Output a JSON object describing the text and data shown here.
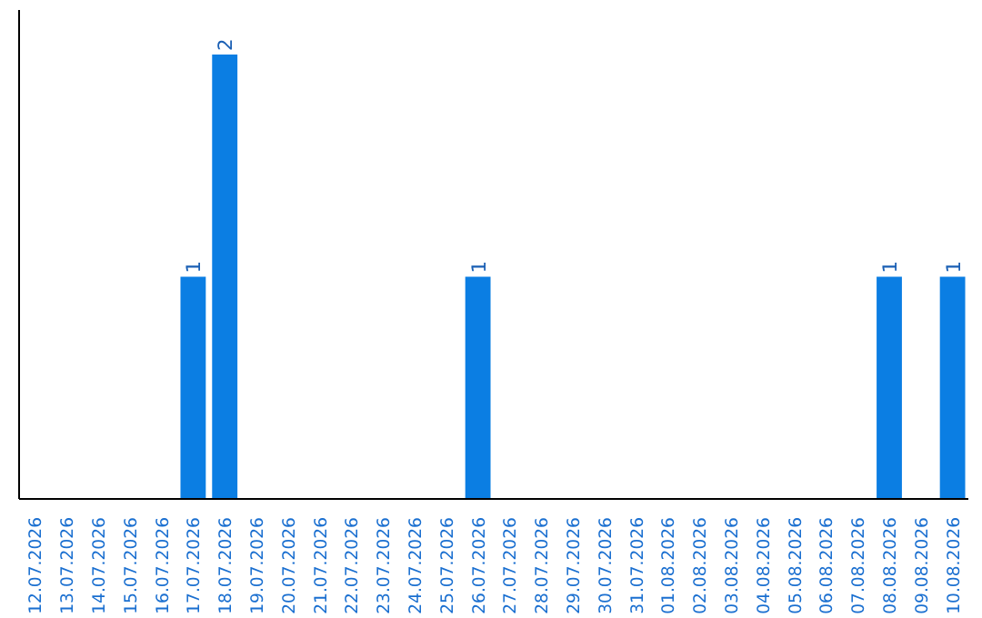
{
  "chart_data": {
    "type": "bar",
    "categories": [
      "12.07.2026",
      "13.07.2026",
      "14.07.2026",
      "15.07.2026",
      "16.07.2026",
      "17.07.2026",
      "18.07.2026",
      "19.07.2026",
      "20.07.2026",
      "21.07.2026",
      "22.07.2026",
      "23.07.2026",
      "24.07.2026",
      "25.07.2026",
      "26.07.2026",
      "27.07.2026",
      "28.07.2026",
      "29.07.2026",
      "30.07.2026",
      "31.07.2026",
      "01.08.2026",
      "02.08.2026",
      "03.08.2026",
      "04.08.2026",
      "05.08.2026",
      "06.08.2026",
      "07.08.2026",
      "08.08.2026",
      "09.08.2026",
      "10.08.2026"
    ],
    "values": [
      0,
      0,
      0,
      0,
      0,
      1,
      2,
      0,
      0,
      0,
      0,
      0,
      0,
      0,
      1,
      0,
      0,
      0,
      0,
      0,
      0,
      0,
      0,
      0,
      0,
      0,
      0,
      1,
      0,
      1
    ],
    "color": "#0b7ee3",
    "value_labels": [
      null,
      null,
      null,
      null,
      null,
      "1",
      "2",
      null,
      null,
      null,
      null,
      null,
      null,
      null,
      "1",
      null,
      null,
      null,
      null,
      null,
      null,
      null,
      null,
      null,
      null,
      null,
      null,
      "1",
      null,
      "1"
    ],
    "grid": false
  }
}
